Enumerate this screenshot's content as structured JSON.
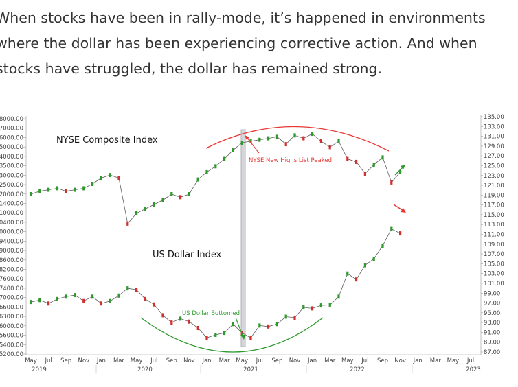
{
  "article": {
    "text": "When stocks have been in rally-mode, it’s happened in environments where the dollar has been experiencing corrective action. And when stocks have struggled, the dollar has remained strong."
  },
  "chart_data": {
    "type": "line",
    "title": "",
    "xlabel": "",
    "ylabel": "",
    "left_axis_ticks": [
      "18000.00",
      "17000.00",
      "16000.00",
      "15000.00",
      "14000.00",
      "13500.00",
      "13000.00",
      "12500.00",
      "12000.00",
      "11400.00",
      "11000.00",
      "10400.00",
      "10000.00",
      "9400.00",
      "9000.00",
      "8600.00",
      "8200.00",
      "7600.00",
      "7400.00",
      "7000.00",
      "6600.00",
      "6300.00",
      "6000.00",
      "5600.00",
      "5400.00",
      "5200.00"
    ],
    "right_axis_ticks": [
      "135.00",
      "133.00",
      "131.00",
      "129.00",
      "127.00",
      "125.00",
      "123.00",
      "121.00",
      "119.00",
      "117.00",
      "115.00",
      "113.00",
      "111.00",
      "109.00",
      "107.00",
      "105.00",
      "103.00",
      "101.00",
      "99.00",
      "97.00",
      "95.00",
      "93.00",
      "91.00",
      "89.00",
      "87.00"
    ],
    "x_months": [
      "May",
      "Jul",
      "Sep",
      "Nov",
      "Jan",
      "Mar",
      "May",
      "Jul",
      "Sep",
      "Nov",
      "Jan",
      "Mar",
      "May",
      "Jul",
      "Sep",
      "Nov",
      "Jan",
      "Mar",
      "May",
      "Jul",
      "Sep",
      "Nov",
      "Jan",
      "Mar",
      "May",
      "Jul"
    ],
    "x_years": [
      "2019",
      "2020",
      "2021",
      "2022",
      "2023"
    ],
    "series": [
      {
        "name": "NYSE Composite Index",
        "color": "#2e9a2e",
        "x": [
          "2019-04",
          "2019-05",
          "2019-06",
          "2019-07",
          "2019-08",
          "2019-09",
          "2019-10",
          "2019-11",
          "2019-12",
          "2020-01",
          "2020-02",
          "2020-03",
          "2020-04",
          "2020-05",
          "2020-06",
          "2020-07",
          "2020-08",
          "2020-09",
          "2020-10",
          "2020-11",
          "2020-12",
          "2021-01",
          "2021-02",
          "2021-03",
          "2021-04",
          "2021-05",
          "2021-06",
          "2021-07",
          "2021-08",
          "2021-09",
          "2021-10",
          "2021-11",
          "2021-12",
          "2022-01",
          "2022-02",
          "2022-03",
          "2022-04",
          "2022-05",
          "2022-06",
          "2022-07",
          "2022-08",
          "2022-09",
          "2022-10"
        ],
        "values": [
          12800,
          13000,
          13100,
          13200,
          13000,
          13100,
          13200,
          13500,
          13900,
          14100,
          13900,
          10800,
          11500,
          11800,
          12100,
          12400,
          12800,
          12600,
          12800,
          13800,
          14300,
          14700,
          15200,
          15800,
          16300,
          16400,
          16500,
          16600,
          16700,
          16200,
          16800,
          16600,
          16900,
          16400,
          16000,
          16400,
          15200,
          15000,
          14200,
          14800,
          15300,
          13600,
          14300
        ]
      },
      {
        "name": "US Dollar Index",
        "color": "#c0392b",
        "x": [
          "2019-04",
          "2019-05",
          "2019-06",
          "2019-07",
          "2019-08",
          "2019-09",
          "2019-10",
          "2019-11",
          "2019-12",
          "2020-01",
          "2020-02",
          "2020-03",
          "2020-04",
          "2020-05",
          "2020-06",
          "2020-07",
          "2020-08",
          "2020-09",
          "2020-10",
          "2020-11",
          "2020-12",
          "2021-01",
          "2021-02",
          "2021-03",
          "2021-04",
          "2021-05",
          "2021-06",
          "2021-07",
          "2021-08",
          "2021-09",
          "2021-10",
          "2021-11",
          "2021-12",
          "2022-01",
          "2022-02",
          "2022-03",
          "2022-04",
          "2022-05",
          "2022-06",
          "2022-07",
          "2022-08",
          "2022-09",
          "2022-10"
        ],
        "values": [
          97.2,
          97.6,
          96.9,
          97.8,
          98.3,
          98.6,
          97.4,
          98.3,
          96.9,
          97.4,
          98.5,
          100.0,
          99.7,
          97.8,
          96.7,
          94.5,
          93.0,
          93.8,
          93.2,
          91.9,
          89.9,
          90.5,
          90.9,
          92.7,
          90.9,
          89.9,
          92.4,
          92.2,
          92.7,
          94.2,
          94.0,
          96.1,
          95.9,
          96.5,
          96.6,
          98.3,
          103.0,
          101.8,
          104.7,
          106.0,
          108.7,
          112.1,
          111.2
        ]
      }
    ],
    "annotations": [
      {
        "text": "NYSE Composite Index",
        "color": "#111111"
      },
      {
        "text": "US Dollar Index",
        "color": "#111111"
      },
      {
        "text": "NYSE New Highs List Peaked",
        "color": "#e53935"
      },
      {
        "text": "US Dollar Bottomed",
        "color": "#2e9a2e"
      }
    ],
    "colors": {
      "upper_arc": "#e53935",
      "lower_arc": "#2e9a2e",
      "divider": "#c8c8cc"
    },
    "grid": false
  }
}
